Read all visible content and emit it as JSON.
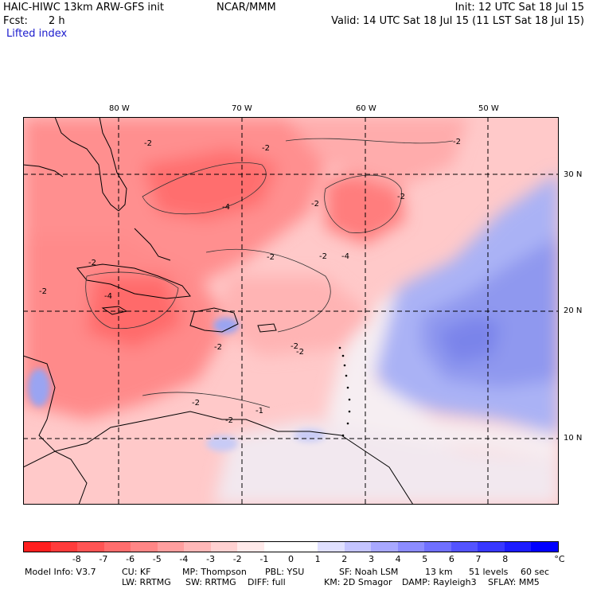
{
  "header": {
    "title": "HAIC-HIWC 13km ARW-GFS init",
    "org": "NCAR/MMM",
    "init": "Init: 12 UTC Sat 18 Jul 15",
    "fcst_label": "Fcst:",
    "fcst_value": "2 h",
    "valid": "Valid: 14 UTC Sat 18 Jul 15 (11 LST Sat 18 Jul 15)",
    "field": "Lifted index"
  },
  "axes": {
    "lon_labels": [
      "80 W",
      "70 W",
      "60 W",
      "50 W"
    ],
    "lat_labels": [
      "30 N",
      "20 N",
      "10 N"
    ]
  },
  "contour_labels": [
    "-2",
    "-2",
    "-2",
    "-4",
    "-2",
    "-2",
    "-2",
    "-4",
    "-2",
    "-2",
    "-4",
    "-2",
    "-2",
    "-2",
    "-2",
    "-2",
    "-1",
    "-2"
  ],
  "colorbar": {
    "colors": [
      "#ff1f1f",
      "#ff3b3b",
      "#ff5454",
      "#ff6d6d",
      "#ff8686",
      "#ff9f9f",
      "#ffb8b8",
      "#ffd1d1",
      "#ffeaea",
      "#ffffff",
      "#ffffff",
      "#e0e0ff",
      "#c4c4ff",
      "#a8a8ff",
      "#8c8cff",
      "#7070ff",
      "#5454ff",
      "#3838ff",
      "#1c1cff",
      "#0000ff"
    ],
    "labels": [
      "-8",
      "-7",
      "-6",
      "-5",
      "-4",
      "-3",
      "-2",
      "-1",
      "0",
      "1",
      "2",
      "3",
      "4",
      "5",
      "6",
      "7",
      "8"
    ],
    "unit": "°C"
  },
  "model_info": {
    "line1": [
      "Model Info: V3.7",
      "CU: KF",
      "MP: Thompson",
      "PBL: YSU",
      "SF: Noah LSM",
      "13 km",
      "51 levels",
      "60 sec"
    ],
    "line2": [
      "LW: RRTMG",
      "SW: RRTMG",
      "DIFF: full",
      "KM: 2D Smagor",
      "DAMP: Rayleigh3",
      "SFLAY: MM5"
    ]
  }
}
